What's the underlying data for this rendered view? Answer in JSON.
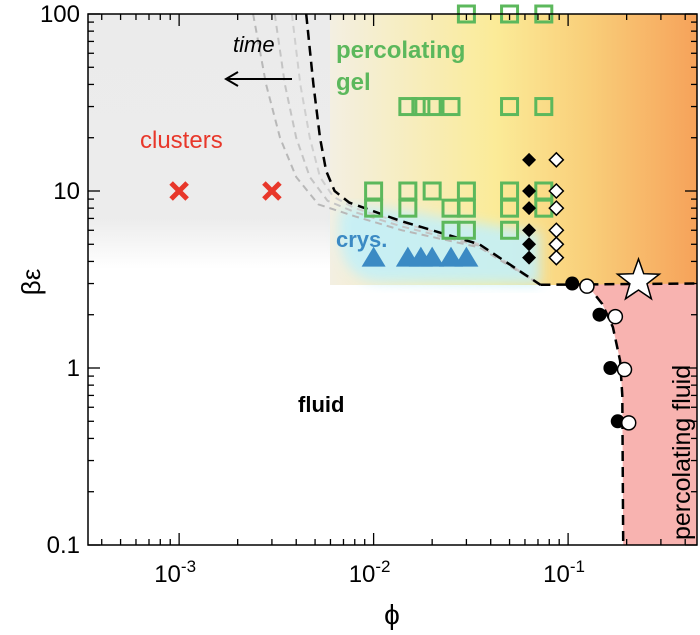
{
  "chart_data": {
    "type": "scatter",
    "xlabel": "ϕ",
    "ylabel": "βε",
    "xscale": "log",
    "yscale": "log",
    "xlim": [
      0.00034,
      0.46
    ],
    "ylim": [
      0.1,
      100
    ],
    "x_ticks": [
      {
        "base": "10",
        "exp": "-3",
        "value": 0.001
      },
      {
        "base": "10",
        "exp": "-2",
        "value": 0.01
      },
      {
        "base": "10",
        "exp": "-1",
        "value": 0.1
      }
    ],
    "y_ticks": [
      {
        "label": "100",
        "value": 100
      },
      {
        "label": "10",
        "value": 10
      },
      {
        "label": "1",
        "value": 1
      },
      {
        "label": "0.1",
        "value": 0.1
      }
    ],
    "grid": false,
    "region_labels": {
      "clusters": "clusters",
      "gel_line1": "percolating",
      "gel_line2": "gel",
      "crystal": "crys.",
      "fluid": "fluid",
      "percolating_fluid": "percolating fluid",
      "time": "time"
    },
    "colors": {
      "clusters": "#e8372a",
      "gel": "#5cb85c",
      "crystal": "#3b8ac4",
      "percolating_fluid_region": "#f8b3b0",
      "gel_region_start": "#f7f0d0",
      "gel_region_end": "#f6a860",
      "cluster_region": "#ececec",
      "crystal_region": "#c4f0f8"
    },
    "series": [
      {
        "marker": "cross",
        "color": "#e8372a",
        "points": [
          [
            0.001,
            10
          ],
          [
            0.003,
            10
          ]
        ]
      },
      {
        "marker": "open-square",
        "color": "#5cb85c",
        "points": [
          [
            0.03,
            100
          ],
          [
            0.05,
            100
          ],
          [
            0.075,
            100
          ],
          [
            0.015,
            30
          ],
          [
            0.0175,
            30
          ],
          [
            0.02,
            30
          ],
          [
            0.025,
            30
          ],
          [
            0.05,
            30
          ],
          [
            0.075,
            30
          ],
          [
            0.01,
            10
          ],
          [
            0.015,
            10
          ],
          [
            0.02,
            10
          ],
          [
            0.03,
            10
          ],
          [
            0.05,
            10
          ],
          [
            0.075,
            10
          ],
          [
            0.01,
            8
          ],
          [
            0.015,
            8
          ],
          [
            0.025,
            8
          ],
          [
            0.03,
            8
          ],
          [
            0.05,
            8
          ],
          [
            0.075,
            8
          ],
          [
            0.025,
            6
          ],
          [
            0.03,
            6
          ],
          [
            0.05,
            6
          ]
        ]
      },
      {
        "marker": "filled-triangle",
        "color": "#3b8ac4",
        "points": [
          [
            0.01,
            4.2
          ],
          [
            0.015,
            4.2
          ],
          [
            0.0175,
            4.2
          ],
          [
            0.02,
            4.2
          ],
          [
            0.025,
            4.2
          ],
          [
            0.03,
            4.2
          ]
        ]
      },
      {
        "marker": "filled-diamond",
        "color": "#000000",
        "points": [
          [
            0.063,
            15
          ],
          [
            0.063,
            10
          ],
          [
            0.063,
            8
          ],
          [
            0.063,
            6
          ],
          [
            0.063,
            5
          ],
          [
            0.063,
            4.2
          ]
        ]
      },
      {
        "marker": "open-diamond",
        "color": "#000000",
        "points": [
          [
            0.087,
            15
          ],
          [
            0.087,
            10
          ],
          [
            0.087,
            8
          ],
          [
            0.087,
            6
          ],
          [
            0.087,
            5
          ],
          [
            0.087,
            4.2
          ]
        ]
      },
      {
        "marker": "filled-circle",
        "color": "#000000",
        "points": [
          [
            0.105,
            3
          ],
          [
            0.145,
            2
          ],
          [
            0.165,
            1
          ],
          [
            0.18,
            0.5
          ]
        ]
      },
      {
        "marker": "open-circle",
        "color": "#000000",
        "points": [
          [
            0.125,
            2.9
          ],
          [
            0.175,
            1.95
          ],
          [
            0.195,
            0.98
          ],
          [
            0.205,
            0.49
          ]
        ]
      },
      {
        "marker": "open-star",
        "color": "#000000",
        "points": [
          [
            0.23,
            3.1
          ]
        ]
      }
    ],
    "boundaries": {
      "gel_line": [
        [
          0.0045,
          100
        ],
        [
          0.0049,
          40
        ],
        [
          0.0053,
          20
        ],
        [
          0.0057,
          13
        ],
        [
          0.0063,
          10
        ],
        [
          0.0075,
          8.6
        ],
        [
          0.0136,
          6.8
        ],
        [
          0.035,
          5
        ],
        [
          0.072,
          2.95
        ]
      ],
      "percolation_line": [
        [
          0.072,
          2.95
        ],
        [
          0.46,
          3
        ]
      ],
      "percolation_branch": [
        [
          0.1,
          2.95
        ],
        [
          0.13,
          2.8
        ],
        [
          0.15,
          2.3
        ],
        [
          0.17,
          1.7
        ],
        [
          0.185,
          1.1
        ],
        [
          0.19,
          0.7
        ],
        [
          0.192,
          0.1
        ]
      ],
      "time_curves": [
        [
          [
            0.0038,
            100
          ],
          [
            0.0042,
            40
          ],
          [
            0.0047,
            20
          ],
          [
            0.0053,
            12
          ],
          [
            0.0062,
            9.3
          ],
          [
            0.008,
            8
          ],
          [
            0.014,
            6.6
          ],
          [
            0.035,
            5
          ],
          [
            0.072,
            2.95
          ]
        ],
        [
          [
            0.0031,
            100
          ],
          [
            0.0035,
            40
          ],
          [
            0.004,
            20
          ],
          [
            0.0047,
            12
          ],
          [
            0.0058,
            8.8
          ],
          [
            0.008,
            7.6
          ],
          [
            0.014,
            6.3
          ],
          [
            0.035,
            4.9
          ],
          [
            0.072,
            2.95
          ]
        ],
        [
          [
            0.0024,
            100
          ],
          [
            0.0028,
            40
          ],
          [
            0.0033,
            20
          ],
          [
            0.004,
            12
          ],
          [
            0.0052,
            8.4
          ],
          [
            0.008,
            7.2
          ],
          [
            0.014,
            6
          ],
          [
            0.035,
            4.8
          ],
          [
            0.072,
            2.95
          ]
        ]
      ]
    }
  }
}
